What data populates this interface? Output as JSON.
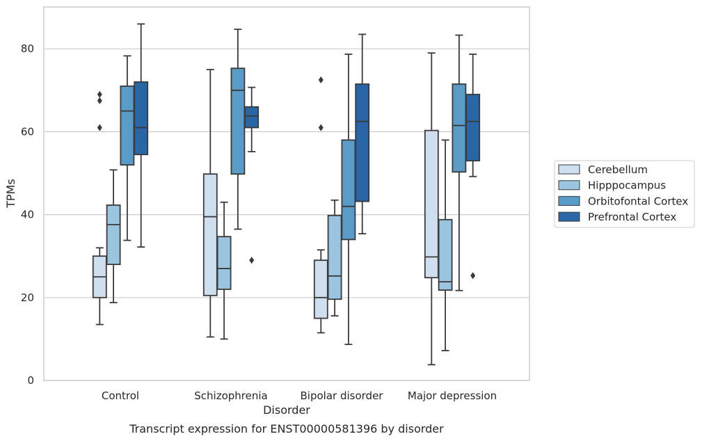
{
  "caption": "Transcript expression for ENST00000581396 by disorder",
  "chart_data": {
    "type": "box",
    "xlabel": "Disorder",
    "ylabel": "TPMs",
    "ylim": [
      0,
      90
    ],
    "yticks": [
      0,
      20,
      40,
      60,
      80
    ],
    "grid": "horizontal",
    "legend_position": "right",
    "categories": [
      "Control",
      "Schizophrenia",
      "Bipolar disorder",
      "Major depression"
    ],
    "series": [
      {
        "name": "Cerebellum",
        "color": "#d0dfef",
        "boxes": [
          {
            "whislo": 13.5,
            "q1": 20.0,
            "med": 25.0,
            "q3": 30.0,
            "whishi": 32.0,
            "fliers": [
              61.0,
              67.5,
              69.0
            ]
          },
          {
            "whislo": 10.5,
            "q1": 20.5,
            "med": 39.5,
            "q3": 49.8,
            "whishi": 75.0,
            "fliers": []
          },
          {
            "whislo": 11.5,
            "q1": 15.0,
            "med": 20.0,
            "q3": 29.0,
            "whishi": 31.5,
            "fliers": [
              61.0,
              72.5
            ]
          },
          {
            "whislo": 3.8,
            "q1": 24.8,
            "med": 29.8,
            "q3": 60.3,
            "whishi": 79.0,
            "fliers": []
          }
        ]
      },
      {
        "name": "Hipppocampus",
        "color": "#9ac4df",
        "boxes": [
          {
            "whislo": 18.8,
            "q1": 28.0,
            "med": 37.6,
            "q3": 42.3,
            "whishi": 50.8,
            "fliers": []
          },
          {
            "whislo": 10.0,
            "q1": 22.0,
            "med": 27.0,
            "q3": 34.7,
            "whishi": 43.0,
            "fliers": []
          },
          {
            "whislo": 15.6,
            "q1": 19.6,
            "med": 25.2,
            "q3": 39.8,
            "whishi": 43.5,
            "fliers": []
          },
          {
            "whislo": 7.2,
            "q1": 21.8,
            "med": 23.8,
            "q3": 38.8,
            "whishi": 58.0,
            "fliers": []
          }
        ]
      },
      {
        "name": "Orbitofontal Cortex",
        "color": "#5b9bc8",
        "boxes": [
          {
            "whislo": 33.8,
            "q1": 52.0,
            "med": 65.0,
            "q3": 71.0,
            "whishi": 78.3,
            "fliers": []
          },
          {
            "whislo": 36.5,
            "q1": 49.8,
            "med": 70.0,
            "q3": 75.3,
            "whishi": 84.7,
            "fliers": []
          },
          {
            "whislo": 8.7,
            "q1": 34.0,
            "med": 42.0,
            "q3": 58.0,
            "whishi": 78.7,
            "fliers": []
          },
          {
            "whislo": 21.7,
            "q1": 50.3,
            "med": 61.5,
            "q3": 71.5,
            "whishi": 83.3,
            "fliers": []
          }
        ]
      },
      {
        "name": "Prefrontal Cortex",
        "color": "#2a65a6",
        "boxes": [
          {
            "whislo": 32.2,
            "q1": 54.5,
            "med": 61.0,
            "q3": 72.0,
            "whishi": 86.0,
            "fliers": []
          },
          {
            "whislo": 55.2,
            "q1": 61.0,
            "med": 63.8,
            "q3": 66.0,
            "whishi": 70.7,
            "fliers": [
              29.0
            ]
          },
          {
            "whislo": 35.4,
            "q1": 43.2,
            "med": 62.5,
            "q3": 71.5,
            "whishi": 83.5,
            "fliers": []
          },
          {
            "whislo": 49.2,
            "q1": 53.0,
            "med": 62.5,
            "q3": 69.0,
            "whishi": 78.7,
            "fliers": [
              25.3
            ]
          }
        ]
      }
    ]
  }
}
